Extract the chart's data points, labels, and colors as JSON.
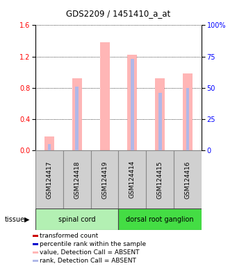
{
  "title": "GDS2209 / 1451410_a_at",
  "samples": [
    "GSM124417",
    "GSM124418",
    "GSM124419",
    "GSM124414",
    "GSM124415",
    "GSM124416"
  ],
  "tissue_groups": [
    {
      "label": "spinal cord",
      "indices": [
        0,
        1,
        2
      ],
      "color": "#b3f0b3"
    },
    {
      "label": "dorsal root ganglion",
      "indices": [
        3,
        4,
        5
      ],
      "color": "#44dd44"
    }
  ],
  "value_absent": [
    0.18,
    0.92,
    1.38,
    1.22,
    0.92,
    0.98
  ],
  "rank_absent_pct": [
    5.0,
    51.0,
    null,
    73.0,
    46.0,
    50.0
  ],
  "ylim_left": [
    0,
    1.6
  ],
  "ylim_right": [
    0,
    100
  ],
  "yticks_left": [
    0,
    0.4,
    0.8,
    1.2,
    1.6
  ],
  "yticks_right": [
    0,
    25,
    50,
    75,
    100
  ],
  "yticklabels_right": [
    "0",
    "25",
    "50",
    "75",
    "100%"
  ],
  "color_value_absent": "#ffb6b6",
  "color_rank_absent": "#b0b8e8",
  "color_value_present": "#cc0000",
  "color_rank_present": "#0000cc",
  "tissue_label": "tissue",
  "legend_items": [
    {
      "label": "transformed count",
      "color": "#cc0000"
    },
    {
      "label": "percentile rank within the sample",
      "color": "#0000cc"
    },
    {
      "label": "value, Detection Call = ABSENT",
      "color": "#ffb6b6"
    },
    {
      "label": "rank, Detection Call = ABSENT",
      "color": "#b0b8e8"
    }
  ]
}
